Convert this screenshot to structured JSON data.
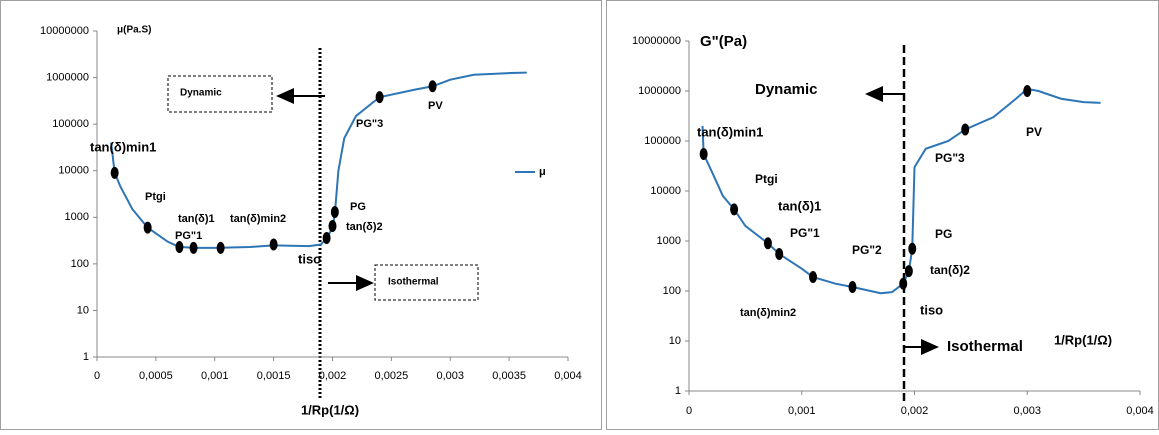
{
  "chart_data": [
    {
      "type": "line",
      "y_log": true,
      "y_label": "μ(Pa.S)",
      "x_label": "1/Rp(1/Ω)",
      "legend": "right",
      "xlim": [
        0,
        0.004
      ],
      "xticks": [
        0,
        {
          "value": 0.0005,
          "label": "0,0005"
        },
        {
          "value": 0.001,
          "label": "0,001"
        },
        {
          "value": 0.0015,
          "label": "0,0015"
        },
        {
          "value": 0.002,
          "label": "0,002"
        },
        {
          "value": 0.0025,
          "label": "0,0025"
        },
        {
          "value": 0.003,
          "label": "0,003"
        },
        {
          "value": 0.0035,
          "label": "0,0035"
        },
        {
          "value": 0.004,
          "label": "0,004"
        }
      ],
      "ylim": [
        1,
        10000000
      ],
      "yticks": [
        1,
        10,
        100,
        1000,
        10000,
        100000,
        1000000,
        10000000
      ],
      "series": [
        {
          "name": "μ",
          "color": "#2e75b6",
          "x": [
            0.00012,
            0.00015,
            0.0002,
            0.0003,
            0.00043,
            0.0006,
            0.0007,
            0.00085,
            0.001,
            0.0013,
            0.0015,
            0.0018,
            0.0019,
            0.00195,
            0.002,
            0.00202,
            0.00205,
            0.0021,
            0.0022,
            0.0024,
            0.0027,
            0.00285,
            0.003,
            0.0032,
            0.0035,
            0.00365
          ],
          "values": [
            40000,
            9000,
            4500,
            1500,
            600,
            300,
            230,
            220,
            220,
            230,
            250,
            240,
            260,
            350,
            600,
            1200,
            10000,
            50000,
            150000,
            380000,
            550000,
            650000,
            900000,
            1150000,
            1250000,
            1280000
          ],
          "marker_x": [
            0.00015,
            0.00043,
            0.0007,
            0.00082,
            0.00105,
            0.0015,
            0.00195,
            0.002,
            0.00202,
            0.0024,
            0.00285
          ],
          "marker_values": [
            9000,
            600,
            230,
            220,
            220,
            260,
            360,
            650,
            1300,
            380000,
            650000
          ]
        }
      ],
      "annotations": [
        "Dynamic",
        "Isothermal",
        "tan(δ)min1",
        "Ptgi",
        "tan(δ)1",
        "PG\"1",
        "tan(δ)min2",
        "tiso",
        "PG",
        "tan(δ)2",
        "PG\"3",
        "PV"
      ]
    },
    {
      "type": "line",
      "y_log": true,
      "y_label": "G\"(Pa)",
      "x_label": "1/Rp(1/Ω)",
      "xlim": [
        0,
        0.004
      ],
      "xticks": [
        0,
        {
          "value": 0.001,
          "label": "0,001"
        },
        {
          "value": 0.002,
          "label": "0,002"
        },
        {
          "value": 0.003,
          "label": "0,003"
        },
        {
          "value": 0.004,
          "label": "0,004"
        }
      ],
      "ylim": [
        1,
        10000000
      ],
      "yticks": [
        1,
        10,
        100,
        1000,
        10000,
        100000,
        1000000,
        10000000
      ],
      "series": [
        {
          "color": "#2e75b6",
          "x": [
            0.00012,
            0.00013,
            0.0002,
            0.0003,
            0.0004,
            0.0005,
            0.0007,
            0.0008,
            0.001,
            0.0011,
            0.0013,
            0.00145,
            0.0017,
            0.0018,
            0.0019,
            0.00195,
            0.00198,
            0.002,
            0.0021,
            0.0023,
            0.00245,
            0.0027,
            0.0029,
            0.003,
            0.0031,
            0.0033,
            0.0035,
            0.00365
          ],
          "values": [
            200000,
            55000,
            25000,
            8000,
            4300,
            2000,
            900,
            550,
            280,
            190,
            140,
            120,
            90,
            95,
            140,
            250,
            700,
            30000,
            70000,
            100000,
            170000,
            300000,
            700000,
            1100000,
            1000000,
            700000,
            600000,
            580000
          ],
          "marker_x": [
            0.00013,
            0.0004,
            0.0007,
            0.0008,
            0.0011,
            0.00145,
            0.0019,
            0.00195,
            0.00198,
            0.00245,
            0.003
          ],
          "marker_values": [
            55000,
            4300,
            900,
            550,
            190,
            120,
            140,
            250,
            700,
            170000,
            1000000
          ]
        }
      ],
      "annotations": [
        "Dynamic",
        "Isothermal",
        "tan(δ)min1",
        "Ptgi",
        "tan(δ)1",
        "PG\"1",
        "PG\"2",
        "tan(δ)min2",
        "PG",
        "tan(δ)2",
        "tiso",
        "PG\"3",
        "PV"
      ]
    }
  ]
}
